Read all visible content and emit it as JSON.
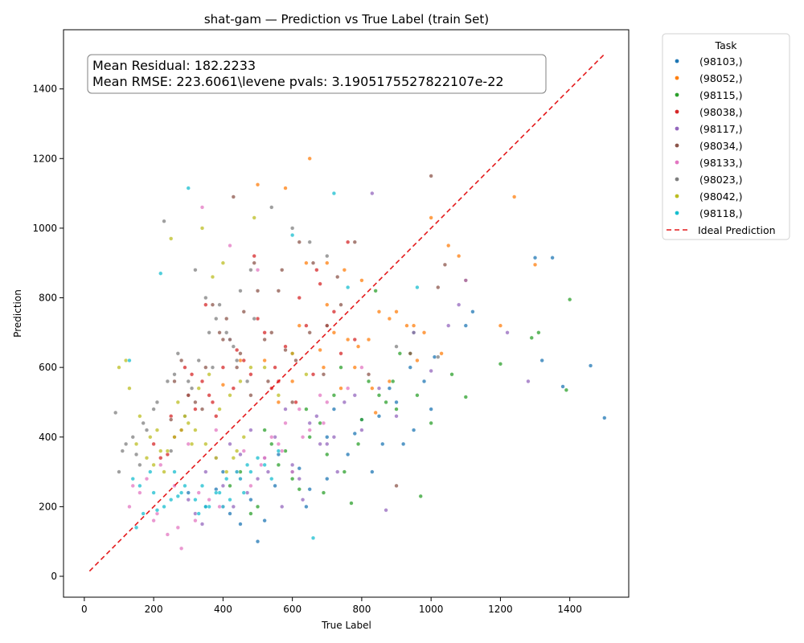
{
  "chart_data": {
    "type": "scatter",
    "title": "shat-gam — Prediction vs True Label (train Set)",
    "xlabel": "True Label",
    "ylabel": "Prediction",
    "xlim": [
      -60,
      1570
    ],
    "ylim": [
      -60,
      1570
    ],
    "xticks": [
      0,
      200,
      400,
      600,
      800,
      1000,
      1200,
      1400
    ],
    "yticks": [
      0,
      200,
      400,
      600,
      800,
      1000,
      1200,
      1400
    ],
    "grid": false,
    "annotation_lines": [
      "Mean Residual: 182.2233",
      "Mean RMSE: 223.6061\\levene pvals: 3.1905175527822107e-22"
    ],
    "legend": {
      "title": "Task",
      "placement": "outside-top-right"
    },
    "ideal_line": {
      "name": "Ideal Prediction",
      "x": [
        15,
        1500
      ],
      "y": [
        15,
        1500
      ],
      "color": "#e41a1c",
      "style": "dashed"
    },
    "series": [
      {
        "name": "(98103,)",
        "color": "#1f77b4",
        "x": [
          350,
          420,
          480,
          520,
          600,
          650,
          700,
          760,
          800,
          860,
          900,
          950,
          1000,
          1100,
          1300,
          1350,
          1460,
          1500,
          380,
          450,
          550,
          620,
          720,
          830,
          880,
          940,
          1010,
          1120,
          1320,
          1380,
          300,
          400,
          500,
          560,
          640,
          700,
          780,
          850,
          920,
          980
        ],
        "y": [
          200,
          180,
          220,
          160,
          300,
          250,
          400,
          350,
          450,
          380,
          500,
          420,
          480,
          720,
          915,
          915,
          605,
          455,
          250,
          150,
          260,
          310,
          480,
          300,
          540,
          600,
          630,
          760,
          620,
          545,
          240,
          300,
          100,
          350,
          200,
          280,
          410,
          460,
          380,
          560
        ]
      },
      {
        "name": "(98052,)",
        "color": "#ff7f0e",
        "x": [
          500,
          580,
          650,
          700,
          750,
          800,
          850,
          900,
          950,
          1000,
          1050,
          1100,
          1200,
          1240,
          1300,
          520,
          600,
          680,
          720,
          780,
          820,
          880,
          930,
          980,
          1030,
          1080,
          640,
          700,
          760,
          830,
          880,
          960,
          400,
          450,
          560,
          620,
          690,
          740,
          790,
          840
        ],
        "y": [
          1125,
          1115,
          1200,
          900,
          880,
          850,
          760,
          760,
          720,
          1030,
          950,
          850,
          720,
          1090,
          895,
          620,
          560,
          650,
          700,
          600,
          680,
          740,
          720,
          700,
          640,
          920,
          900,
          780,
          680,
          540,
          560,
          620,
          550,
          620,
          500,
          720,
          600,
          540,
          660,
          470
        ]
      },
      {
        "name": "(98115,)",
        "color": "#2ca02c",
        "x": [
          420,
          500,
          560,
          600,
          650,
          700,
          750,
          800,
          850,
          900,
          950,
          1000,
          1060,
          1100,
          1200,
          1290,
          1310,
          1400,
          450,
          520,
          580,
          640,
          690,
          740,
          790,
          840,
          890,
          940,
          970,
          1390,
          480,
          540,
          620,
          680,
          720,
          770,
          820,
          870,
          910,
          960
        ],
        "y": [
          260,
          200,
          320,
          280,
          400,
          350,
          300,
          450,
          520,
          480,
          700,
          440,
          580,
          515,
          610,
          685,
          700,
          795,
          300,
          420,
          360,
          480,
          240,
          600,
          380,
          820,
          560,
          640,
          230,
          535,
          180,
          380,
          250,
          440,
          520,
          210,
          560,
          500,
          640,
          520
        ]
      },
      {
        "name": "(98038,)",
        "color": "#d62728",
        "x": [
          200,
          240,
          280,
          320,
          360,
          400,
          440,
          480,
          520,
          560,
          600,
          640,
          680,
          720,
          760,
          220,
          260,
          300,
          340,
          380,
          420,
          460,
          500,
          540,
          580,
          620,
          660,
          700,
          740,
          780,
          250,
          310,
          370,
          430,
          490,
          550,
          610,
          670,
          290,
          350
        ],
        "y": [
          380,
          350,
          420,
          480,
          520,
          600,
          650,
          580,
          700,
          560,
          640,
          720,
          840,
          760,
          960,
          340,
          400,
          520,
          560,
          460,
          680,
          620,
          740,
          540,
          660,
          800,
          580,
          720,
          640,
          680,
          460,
          580,
          500,
          540,
          920,
          600,
          500,
          880,
          600,
          780
        ]
      },
      {
        "name": "(98117,)",
        "color": "#9467bd",
        "x": [
          300,
          350,
          400,
          450,
          500,
          550,
          600,
          650,
          700,
          750,
          800,
          850,
          900,
          950,
          1000,
          1050,
          1080,
          1100,
          1220,
          1280,
          320,
          380,
          430,
          480,
          530,
          580,
          630,
          680,
          730,
          780,
          830,
          870,
          340,
          420,
          470,
          520,
          570,
          620,
          670,
          720
        ],
        "y": [
          220,
          300,
          260,
          350,
          280,
          400,
          320,
          440,
          380,
          500,
          420,
          540,
          460,
          700,
          590,
          720,
          780,
          850,
          700,
          560,
          180,
          340,
          200,
          420,
          300,
          480,
          220,
          380,
          300,
          520,
          1100,
          190,
          150,
          380,
          240,
          340,
          200,
          280,
          460,
          400
        ]
      },
      {
        "name": "(98034,)",
        "color": "#8c564b",
        "x": [
          250,
          300,
          350,
          400,
          430,
          460,
          500,
          540,
          580,
          620,
          660,
          700,
          740,
          780,
          820,
          900,
          940,
          1000,
          1020,
          1040,
          280,
          320,
          370,
          410,
          450,
          490,
          530,
          570,
          610,
          650,
          690,
          730,
          260,
          340,
          390,
          440,
          480,
          520,
          560,
          600
        ],
        "y": [
          450,
          520,
          600,
          680,
          1090,
          760,
          820,
          700,
          650,
          960,
          900,
          720,
          780,
          960,
          580,
          260,
          640,
          1150,
          830,
          895,
          620,
          500,
          780,
          740,
          640,
          900,
          560,
          880,
          620,
          700,
          580,
          860,
          560,
          480,
          700,
          600,
          520,
          680,
          820,
          500
        ]
      },
      {
        "name": "(98133,)",
        "color": "#e377c2",
        "x": [
          130,
          160,
          200,
          240,
          280,
          320,
          360,
          400,
          440,
          480,
          520,
          560,
          600,
          650,
          700,
          760,
          800,
          180,
          220,
          260,
          300,
          340,
          380,
          420,
          460,
          500,
          540,
          580,
          620,
          680,
          140,
          210,
          270,
          330,
          390,
          450,
          510,
          570,
          630,
          690
        ],
        "y": [
          200,
          240,
          160,
          120,
          80,
          160,
          220,
          200,
          300,
          260,
          340,
          380,
          300,
          420,
          500,
          540,
          600,
          280,
          320,
          260,
          380,
          1060,
          420,
          950,
          360,
          880,
          400,
          440,
          480,
          520,
          260,
          180,
          140,
          240,
          200,
          280,
          320,
          360,
          400,
          440
        ]
      },
      {
        "name": "(98023,)",
        "color": "#7f7f7f",
        "x": [
          90,
          120,
          150,
          180,
          210,
          240,
          270,
          300,
          330,
          360,
          390,
          420,
          450,
          480,
          540,
          600,
          650,
          700,
          900,
          1020,
          100,
          140,
          170,
          200,
          230,
          260,
          290,
          320,
          350,
          380,
          410,
          440,
          470,
          110,
          160,
          250,
          310,
          370,
          430,
          490
        ],
        "y": [
          470,
          380,
          350,
          420,
          500,
          560,
          640,
          560,
          620,
          700,
          780,
          680,
          820,
          880,
          1060,
          1000,
          960,
          920,
          660,
          630,
          300,
          400,
          440,
          480,
          1020,
          580,
          460,
          880,
          800,
          740,
          700,
          620,
          560,
          360,
          320,
          360,
          540,
          600,
          660,
          740
        ]
      },
      {
        "name": "(98042,)",
        "color": "#bcbd22",
        "x": [
          100,
          130,
          160,
          190,
          220,
          250,
          280,
          310,
          340,
          370,
          400,
          430,
          460,
          490,
          520,
          560,
          600,
          640,
          120,
          150,
          180,
          210,
          240,
          270,
          300,
          330,
          360,
          390,
          420,
          450,
          480,
          200,
          230,
          260,
          290,
          320,
          350,
          380,
          410,
          440
        ],
        "y": [
          600,
          540,
          460,
          400,
          360,
          970,
          420,
          380,
          1000,
          860,
          900,
          340,
          400,
          1030,
          600,
          520,
          640,
          580,
          620,
          380,
          340,
          420,
          360,
          500,
          440,
          540,
          580,
          480,
          520,
          560,
          600,
          320,
          300,
          400,
          460,
          420,
          380,
          340,
          300,
          360
        ]
      },
      {
        "name": "(98118,)",
        "color": "#17becf",
        "x": [
          130,
          160,
          190,
          220,
          250,
          280,
          300,
          330,
          360,
          390,
          420,
          450,
          480,
          520,
          560,
          600,
          660,
          720,
          760,
          960,
          140,
          170,
          200,
          230,
          260,
          290,
          320,
          350,
          380,
          410,
          440,
          470,
          500,
          150,
          210,
          270,
          340,
          400,
          460,
          540
        ],
        "y": [
          620,
          260,
          300,
          870,
          220,
          240,
          1115,
          180,
          200,
          240,
          220,
          280,
          300,
          320,
          360,
          980,
          110,
          1100,
          830,
          830,
          280,
          180,
          240,
          200,
          300,
          260,
          220,
          200,
          240,
          280,
          300,
          320,
          340,
          140,
          190,
          230,
          260,
          200,
          240,
          280
        ]
      }
    ]
  }
}
